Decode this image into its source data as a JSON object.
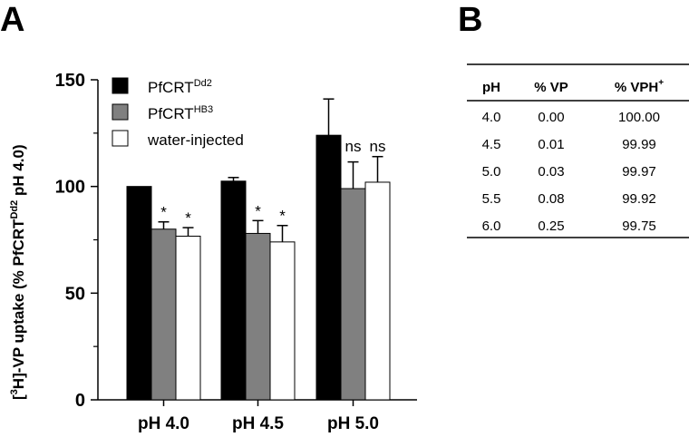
{
  "panel_a": {
    "letter": "A"
  },
  "panel_b": {
    "letter": "B"
  },
  "chart_data": {
    "type": "bar",
    "title": "",
    "xlabel": "",
    "ylabel_parts": {
      "pre": "[",
      "sup1": "3",
      "mid": "H]-VP uptake (% PfCRT",
      "sup2": "Dd2",
      "post": " pH 4.0)"
    },
    "ylabel": "[3H]-VP uptake (% PfCRTDd2 pH 4.0)",
    "ylim": [
      0,
      150
    ],
    "yticks": [
      0,
      50,
      100,
      150
    ],
    "yticks_minor": [
      25,
      75,
      125
    ],
    "categories": [
      "pH 4.0",
      "pH 4.5",
      "pH 5.0"
    ],
    "legend_position": "top-left",
    "series": [
      {
        "name": "PfCRT",
        "name_sup": "Dd2",
        "color": "#000000",
        "values": [
          100,
          102.5,
          124
        ],
        "errors": [
          0,
          1.7,
          17
        ],
        "significance": [
          "",
          "",
          ""
        ]
      },
      {
        "name": "PfCRT",
        "name_sup": "HB3",
        "color": "#808080",
        "values": [
          80,
          78,
          99
        ],
        "errors": [
          3.4,
          6,
          12.5
        ],
        "significance": [
          "*",
          "*",
          "ns"
        ]
      },
      {
        "name": "water-injected",
        "name_sup": "",
        "color": "#ffffff",
        "values": [
          76.7,
          74,
          102
        ],
        "errors": [
          4,
          7.7,
          12
        ],
        "significance": [
          "*",
          "*",
          "ns"
        ]
      }
    ]
  },
  "table": {
    "headers": [
      "pH",
      "% VP",
      "% VPH"
    ],
    "header_sup": [
      "",
      "",
      "+"
    ],
    "rows": [
      [
        "4.0",
        "0.00",
        "100.00"
      ],
      [
        "4.5",
        "0.01",
        "99.99"
      ],
      [
        "5.0",
        "0.03",
        "99.97"
      ],
      [
        "5.5",
        "0.08",
        "99.92"
      ],
      [
        "6.0",
        "0.25",
        "99.75"
      ]
    ]
  }
}
